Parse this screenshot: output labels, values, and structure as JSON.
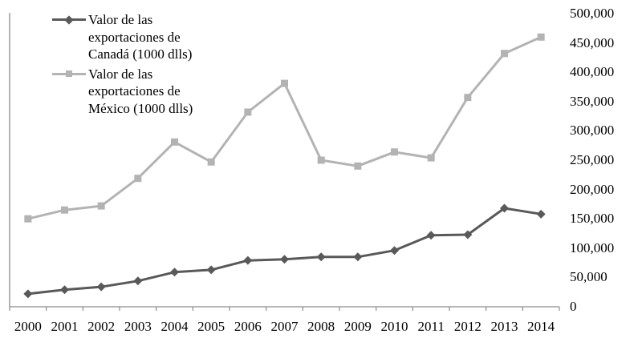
{
  "chart_data": {
    "type": "line",
    "title": "",
    "xlabel": "",
    "ylabel": "",
    "ylim": [
      0,
      500000
    ],
    "y_ticks": [
      "0",
      "50,000",
      "100,000",
      "150,000",
      "200,000",
      "250,000",
      "300,000",
      "350,000",
      "400,000",
      "450,000",
      "500,000"
    ],
    "y_axis_position": "right",
    "grid": false,
    "legend_position": "top-left",
    "categories": [
      "2000",
      "2001",
      "2002",
      "2003",
      "2004",
      "2005",
      "2006",
      "2007",
      "2008",
      "2009",
      "2010",
      "2011",
      "2012",
      "2013",
      "2014"
    ],
    "series": [
      {
        "name": "Valor de las exportaciones de Canadá (1000 dlls)",
        "legend_lines": [
          "Valor de las",
          "exportaciones de",
          "Canadá (1000 dlls)"
        ],
        "color": "#595959",
        "marker": "diamond",
        "values": [
          22000,
          29000,
          34000,
          44000,
          59000,
          63000,
          79000,
          81000,
          85000,
          85000,
          96000,
          122000,
          123000,
          168000,
          158000
        ]
      },
      {
        "name": "Valor de las exportaciones de México (1000 dlls)",
        "legend_lines": [
          "Valor de las",
          "exportaciones de",
          "México (1000 dlls)"
        ],
        "color": "#b3b3b3",
        "marker": "square",
        "values": [
          150000,
          165000,
          172000,
          219000,
          281000,
          247000,
          332000,
          381000,
          250000,
          240000,
          264000,
          254000,
          357000,
          432000,
          460000
        ]
      }
    ]
  },
  "axis_color": "#8c8c8c"
}
